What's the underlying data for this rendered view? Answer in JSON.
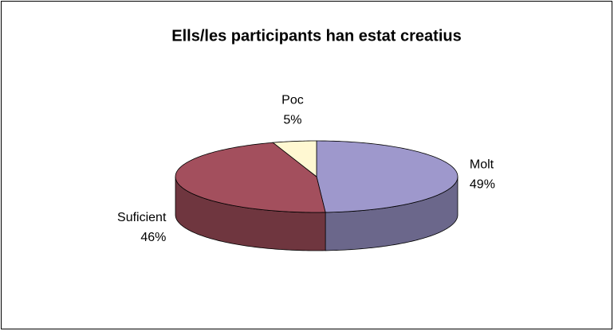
{
  "chart_data": {
    "type": "pie3d",
    "title": "Ells/les participants han estat creatius",
    "categories": [
      "Molt",
      "Suficient",
      "Poc"
    ],
    "values": [
      49,
      46,
      5
    ],
    "value_labels": [
      "49%",
      "46%",
      "5%"
    ],
    "colors": [
      "#9e98cc",
      "#a34f5d",
      "#fff8d2"
    ]
  }
}
